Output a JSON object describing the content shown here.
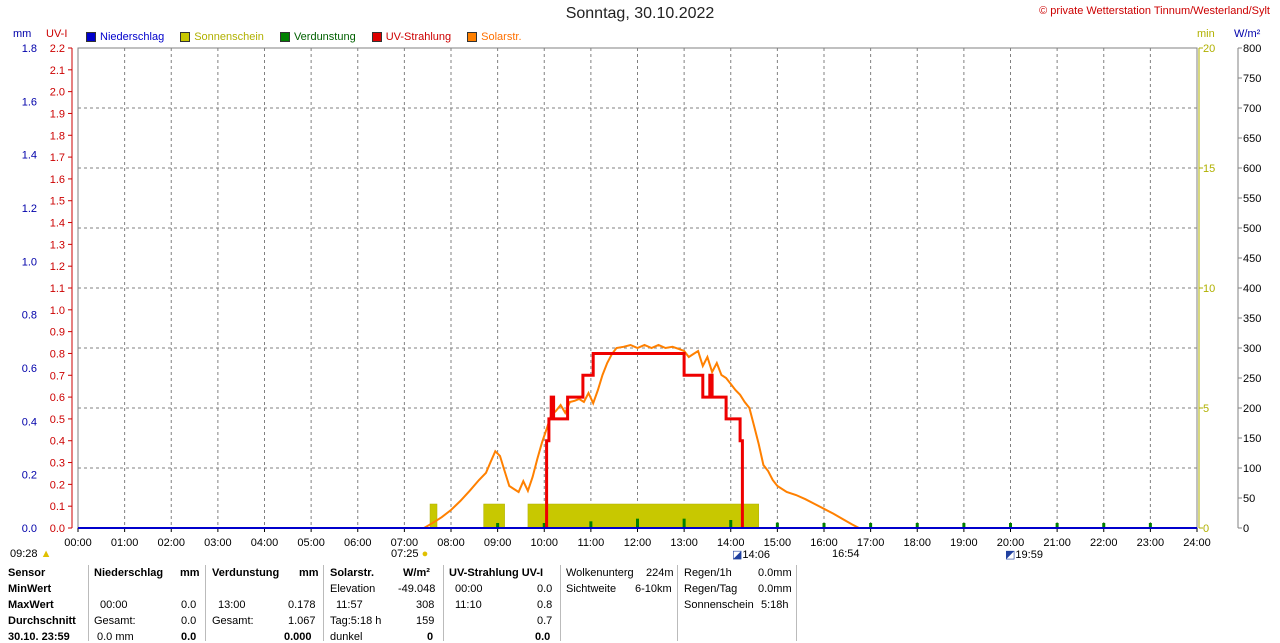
{
  "header": {
    "title": "Sonntag, 30.10.2022",
    "copyright": "© private Wetterstation Tinnum/Westerland/Sylt"
  },
  "units": {
    "left_outer": "mm",
    "left_inner": "UV-I",
    "right_inner": "min",
    "right_outer": "W/m²"
  },
  "legend": [
    {
      "label": "Niederschlag",
      "color": "#0000cc"
    },
    {
      "label": "Sonnenschein",
      "color": "#c8c800"
    },
    {
      "label": "Verdunstung",
      "color": "#008000"
    },
    {
      "label": "UV-Strahlung",
      "color": "#dd0000"
    },
    {
      "label": "Solarstr.",
      "color": "#ff8000"
    }
  ],
  "colors": {
    "precip": "#0000cc",
    "sun": "#c8c800",
    "evap": "#008000",
    "uv": "#ee0000",
    "solar": "#ff8000",
    "grid": "#808080",
    "sun_axis": "#b0b000",
    "uv_axis": "#cc0000"
  },
  "chart_data": {
    "type": "line",
    "x_unit": "time of day",
    "x_ticks": [
      "00:00",
      "01:00",
      "02:00",
      "03:00",
      "04:00",
      "05:00",
      "06:00",
      "07:00",
      "08:00",
      "09:00",
      "10:00",
      "11:00",
      "12:00",
      "13:00",
      "14:00",
      "15:00",
      "16:00",
      "17:00",
      "18:00",
      "19:00",
      "20:00",
      "21:00",
      "22:00",
      "23:00",
      "24:00"
    ],
    "axes": {
      "mm": {
        "range": [
          0,
          1.8
        ],
        "ticks": [
          "0.0",
          "0.2",
          "0.4",
          "0.6",
          "0.8",
          "1.0",
          "1.2",
          "1.4",
          "1.6",
          "1.8"
        ]
      },
      "uv": {
        "range": [
          0,
          2.2
        ],
        "ticks": [
          "0.0",
          "0.1",
          "0.2",
          "0.3",
          "0.4",
          "0.5",
          "0.6",
          "0.7",
          "0.8",
          "0.9",
          "1.0",
          "1.1",
          "1.2",
          "1.3",
          "1.4",
          "1.5",
          "1.6",
          "1.7",
          "1.8",
          "1.9",
          "2.0",
          "2.1",
          "2.2"
        ]
      },
      "min": {
        "range": [
          0,
          20
        ],
        "ticks": [
          "0",
          "5",
          "10",
          "15",
          "20"
        ]
      },
      "wm2": {
        "range": [
          0,
          800
        ],
        "ticks": [
          "0",
          "50",
          "100",
          "150",
          "200",
          "250",
          "300",
          "350",
          "400",
          "450",
          "500",
          "550",
          "600",
          "650",
          "700",
          "750",
          "800"
        ]
      }
    },
    "series": [
      {
        "name": "Solarstr.",
        "axis": "wm2",
        "points": [
          [
            7.42,
            0
          ],
          [
            7.6,
            8
          ],
          [
            7.8,
            18
          ],
          [
            8.0,
            30
          ],
          [
            8.2,
            45
          ],
          [
            8.4,
            62
          ],
          [
            8.6,
            80
          ],
          [
            8.75,
            92
          ],
          [
            8.85,
            110
          ],
          [
            8.95,
            128
          ],
          [
            9.05,
            120
          ],
          [
            9.15,
            95
          ],
          [
            9.25,
            70
          ],
          [
            9.35,
            65
          ],
          [
            9.45,
            60
          ],
          [
            9.55,
            78
          ],
          [
            9.65,
            62
          ],
          [
            9.75,
            85
          ],
          [
            9.85,
            115
          ],
          [
            9.95,
            142
          ],
          [
            10.05,
            165
          ],
          [
            10.15,
            188
          ],
          [
            10.25,
            195
          ],
          [
            10.35,
            205
          ],
          [
            10.45,
            192
          ],
          [
            10.55,
            210
          ],
          [
            10.65,
            212
          ],
          [
            10.75,
            215
          ],
          [
            10.85,
            210
          ],
          [
            10.95,
            225
          ],
          [
            11.05,
            208
          ],
          [
            11.15,
            230
          ],
          [
            11.25,
            255
          ],
          [
            11.35,
            275
          ],
          [
            11.45,
            290
          ],
          [
            11.55,
            300
          ],
          [
            11.7,
            302
          ],
          [
            11.85,
            305
          ],
          [
            12.0,
            300
          ],
          [
            12.15,
            305
          ],
          [
            12.3,
            300
          ],
          [
            12.45,
            305
          ],
          [
            12.6,
            300
          ],
          [
            12.75,
            302
          ],
          [
            12.9,
            298
          ],
          [
            13.0,
            295
          ],
          [
            13.1,
            285
          ],
          [
            13.2,
            290
          ],
          [
            13.3,
            295
          ],
          [
            13.4,
            270
          ],
          [
            13.5,
            285
          ],
          [
            13.6,
            260
          ],
          [
            13.7,
            275
          ],
          [
            13.8,
            255
          ],
          [
            13.9,
            250
          ],
          [
            14.0,
            240
          ],
          [
            14.1,
            230
          ],
          [
            14.2,
            222
          ],
          [
            14.3,
            210
          ],
          [
            14.4,
            200
          ],
          [
            14.5,
            170
          ],
          [
            14.6,
            140
          ],
          [
            14.7,
            105
          ],
          [
            14.8,
            95
          ],
          [
            14.9,
            80
          ],
          [
            15.0,
            70
          ],
          [
            15.2,
            60
          ],
          [
            15.4,
            55
          ],
          [
            15.6,
            48
          ],
          [
            15.8,
            40
          ],
          [
            16.0,
            32
          ],
          [
            16.2,
            24
          ],
          [
            16.4,
            15
          ],
          [
            16.6,
            6
          ],
          [
            16.75,
            0
          ]
        ]
      },
      {
        "name": "UV-Strahlung",
        "axis": "uv",
        "points": [
          [
            10.05,
            0
          ],
          [
            10.05,
            0.4
          ],
          [
            10.1,
            0.4
          ],
          [
            10.1,
            0.5
          ],
          [
            10.15,
            0.5
          ],
          [
            10.15,
            0.6
          ],
          [
            10.2,
            0.6
          ],
          [
            10.2,
            0.5
          ],
          [
            10.5,
            0.5
          ],
          [
            10.5,
            0.6
          ],
          [
            10.83,
            0.6
          ],
          [
            10.83,
            0.7
          ],
          [
            11.05,
            0.7
          ],
          [
            11.05,
            0.8
          ],
          [
            13.0,
            0.8
          ],
          [
            13.0,
            0.7
          ],
          [
            13.4,
            0.7
          ],
          [
            13.4,
            0.6
          ],
          [
            13.55,
            0.6
          ],
          [
            13.55,
            0.7
          ],
          [
            13.6,
            0.7
          ],
          [
            13.6,
            0.6
          ],
          [
            13.9,
            0.6
          ],
          [
            13.9,
            0.5
          ],
          [
            14.2,
            0.5
          ],
          [
            14.2,
            0.4
          ],
          [
            14.25,
            0.4
          ],
          [
            14.25,
            0
          ]
        ]
      },
      {
        "name": "Sonnenschein",
        "axis": "min",
        "bars": [
          [
            7.55,
            7.7,
            1
          ],
          [
            8.7,
            9.15,
            1
          ],
          [
            9.65,
            14.6,
            1
          ]
        ]
      },
      {
        "name": "Verdunstung",
        "axis": "mm",
        "bars": [
          [
            9.0,
            0.01
          ],
          [
            10.0,
            0.01
          ],
          [
            11.0,
            0.025
          ],
          [
            12.0,
            0.035
          ],
          [
            13.0,
            0.035
          ],
          [
            14.0,
            0.03
          ],
          [
            15.0,
            0.02
          ],
          [
            16.0,
            0.01
          ],
          [
            17.0,
            0.005
          ],
          [
            18.0,
            0.005
          ],
          [
            19.0,
            0.005
          ],
          [
            20.0,
            0.005
          ],
          [
            21.0,
            0.005
          ],
          [
            22.0,
            0.005
          ],
          [
            23.0,
            0.005
          ]
        ]
      },
      {
        "name": "Niederschlag",
        "axis": "mm",
        "points": [
          [
            0,
            0
          ],
          [
            24,
            0
          ]
        ]
      }
    ]
  },
  "markers": {
    "sunrise": "07:25",
    "sunset": "16:54",
    "moonrise": "14:06",
    "moonset": "19:59",
    "left_time": "09:28"
  },
  "table": {
    "sensor": {
      "col_labels": [
        "Sensor",
        "MinWert",
        "MaxWert",
        "Durchschnitt",
        "30.10. 23:59"
      ]
    },
    "niederschlag": {
      "header": "Niederschlag",
      "unit": "mm",
      "max_time": "00:00",
      "max_val": "0.0",
      "sum_label": "Gesamt:",
      "sum_val": "0.0",
      "last_time": "0.0 mm",
      "last_val": "0.0"
    },
    "verdunstung": {
      "header": "Verdunstung",
      "unit": "mm",
      "max_time": "13:00",
      "max_val": "0.178",
      "sum_label": "Gesamt:",
      "sum_val": "1.067",
      "last_val": "0.000"
    },
    "solar": {
      "header": "Solarstr.",
      "unit": "W/m²",
      "elev_label": "Elevation",
      "elev_val": "-49.048",
      "max_time": "11:57",
      "max_val": "308",
      "tag_label": "Tag:5:18 h",
      "tag_val": "159",
      "dunkel_label": "dunkel",
      "dunkel_val": "0"
    },
    "uv": {
      "header": "UV-Strahlung UV-I",
      "min_time": "00:00",
      "min_val": "0.0",
      "max_time": "11:10",
      "max_val": "0.8",
      "avg_val": "0.7",
      "last_val": "0.0"
    },
    "cloud": {
      "label1": "Wolkenunterg",
      "val1": "224m",
      "label2": "Sichtweite",
      "val2": "6-10km"
    },
    "rain": {
      "l1": "Regen/1h",
      "v1": "0.0mm",
      "l2": "Regen/Tag",
      "v2": "0.0mm",
      "l3": "Sonnenschein",
      "v3": "5:18h"
    }
  }
}
